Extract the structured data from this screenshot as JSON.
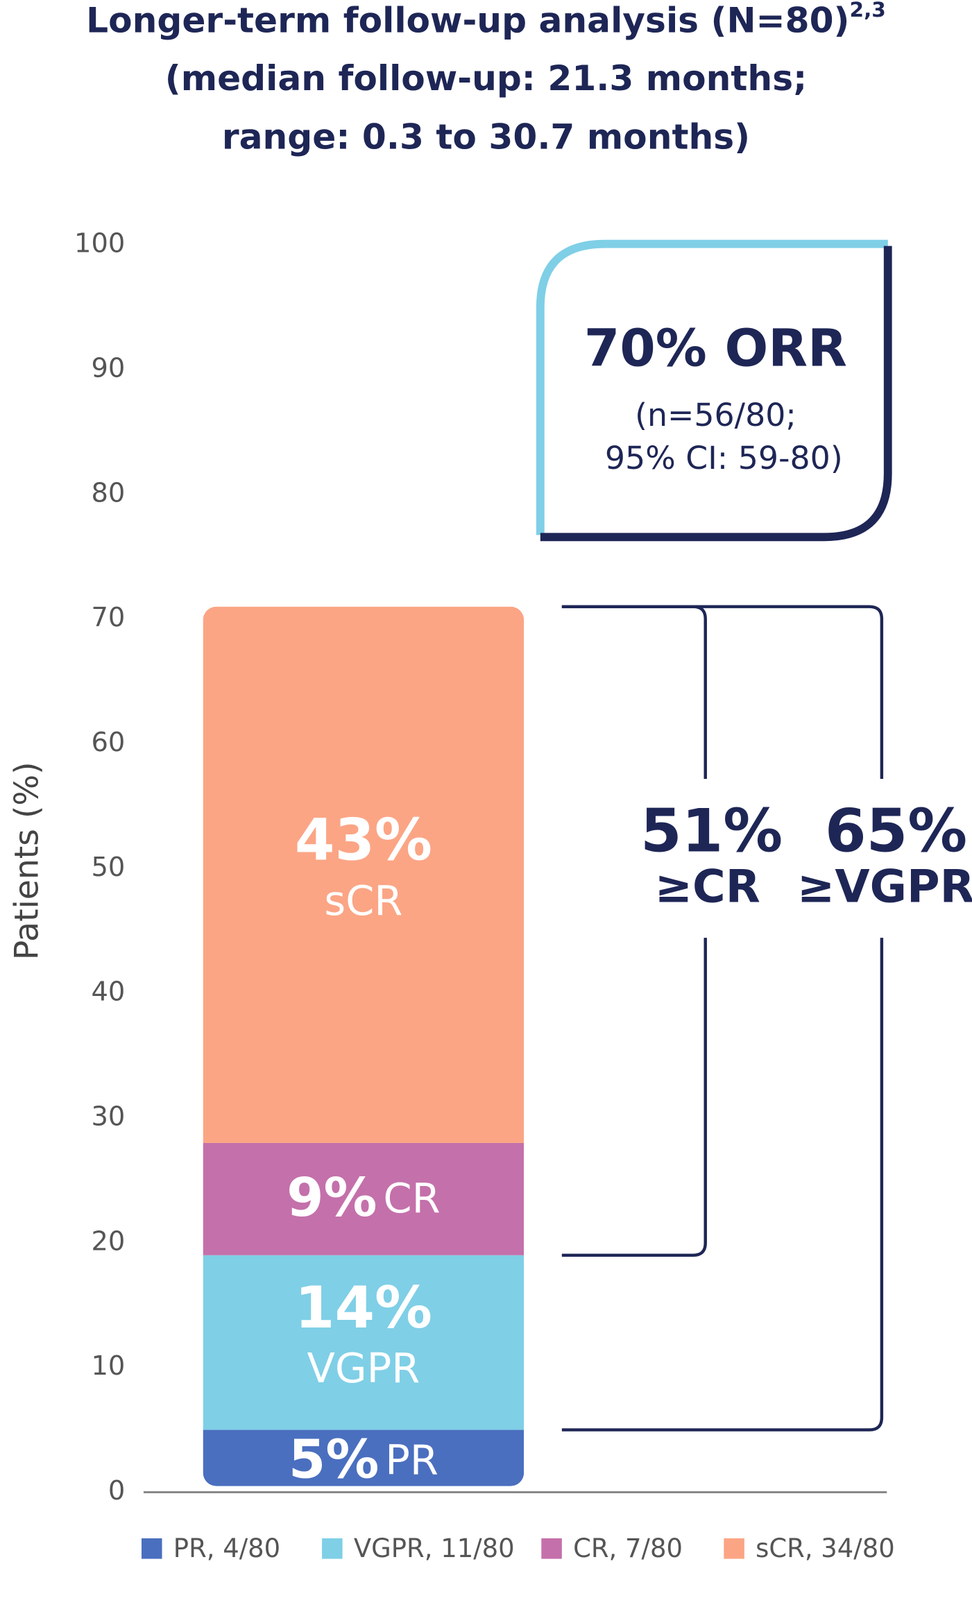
{
  "chart_data": {
    "type": "stacked_bar",
    "title": "Longer-term follow-up analysis (N=80)",
    "title_superscript": "2,3",
    "subtitle": [
      "(median follow-up: 21.3 months;",
      "range: 0.3 to 30.7 months)"
    ],
    "y_label": "Patients (%)",
    "categories": [
      null
    ],
    "series": [
      {
        "name": "PR, 4/80",
        "segment_label": "PR",
        "color": "#4a6fbf",
        "values": [
          5
        ],
        "value_labels": [
          "5%"
        ]
      },
      {
        "name": "VGPR, 11/80",
        "segment_label": "VGPR",
        "color": "#7fcfe6",
        "values": [
          14
        ],
        "value_labels": [
          "14%"
        ]
      },
      {
        "name": "CR, 7/80",
        "segment_label": "CR",
        "color": "#c470ab",
        "values": [
          9
        ],
        "value_labels": [
          "9%"
        ]
      },
      {
        "name": "sCR, 34/80",
        "segment_label": "sCR",
        "color": "#fba585",
        "values": [
          43
        ],
        "value_labels": [
          "43%"
        ]
      }
    ],
    "ylim": [
      0,
      100
    ],
    "yticks": [
      0,
      10,
      20,
      30,
      40,
      50,
      60,
      70,
      80,
      90,
      100
    ],
    "annotations": {
      "orr": {
        "headline": "70% ORR",
        "detail": [
          "(n=56/80;",
          "95% CI: 59-80)"
        ]
      },
      "brackets": [
        {
          "value": "51%",
          "label": "≥CR"
        },
        {
          "value": "65%",
          "label": "≥VGPR"
        }
      ]
    }
  }
}
